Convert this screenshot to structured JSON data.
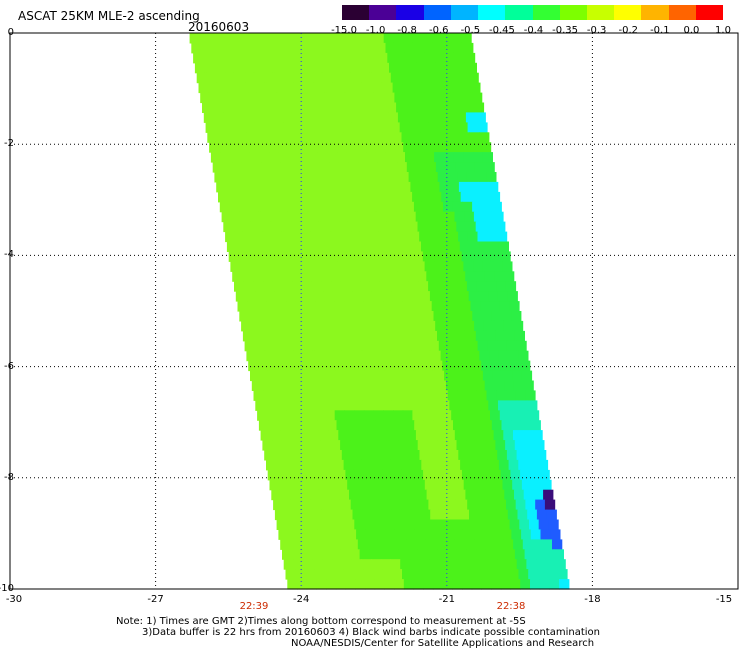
{
  "header": {
    "title": "ASCAT 25KM MLE-2 ascending",
    "date": "20160603"
  },
  "colorbar": {
    "labels": [
      "-15.0",
      "-1.0",
      "-0.8",
      "-0.6",
      "-0.5",
      "-0.45",
      "-0.4",
      "-0.35",
      "-0.3",
      "-0.2",
      "-0.1",
      "0.0",
      "1.0"
    ],
    "colors": [
      "#2b0033",
      "#4b0096",
      "#1a00e6",
      "#0064ff",
      "#00b4ff",
      "#00ffff",
      "#00ff9a",
      "#33ff33",
      "#7dff00",
      "#c8ff00",
      "#ffff00",
      "#ffb400",
      "#ff6400",
      "#ff0000"
    ]
  },
  "axes": {
    "x_ticks": [
      "-30",
      "-27",
      "-24",
      "-21",
      "-18",
      "-15"
    ],
    "y_ticks": [
      "0",
      "-2",
      "-4",
      "-6",
      "-8",
      "-10"
    ],
    "times": [
      "22:39",
      "22:38"
    ]
  },
  "swath_colors": {
    "base": "#8cf81e",
    "green": "#4cf21a",
    "mid": "#2cef45",
    "aqua": "#18f0b4",
    "cyan": "#0af0ff",
    "blue": "#1f5cff",
    "dark": "#3a0d7a"
  },
  "notes": {
    "line1": "Note: 1) Times are GMT 2)Times along bottom correspond to measurement at -5S",
    "line2": "3)Data buffer is 22 hrs from 20160603 4) Black wind barbs indicate possible contamination",
    "line3": "NOAA/NESDIS/Center for Satellite Applications and Research"
  }
}
